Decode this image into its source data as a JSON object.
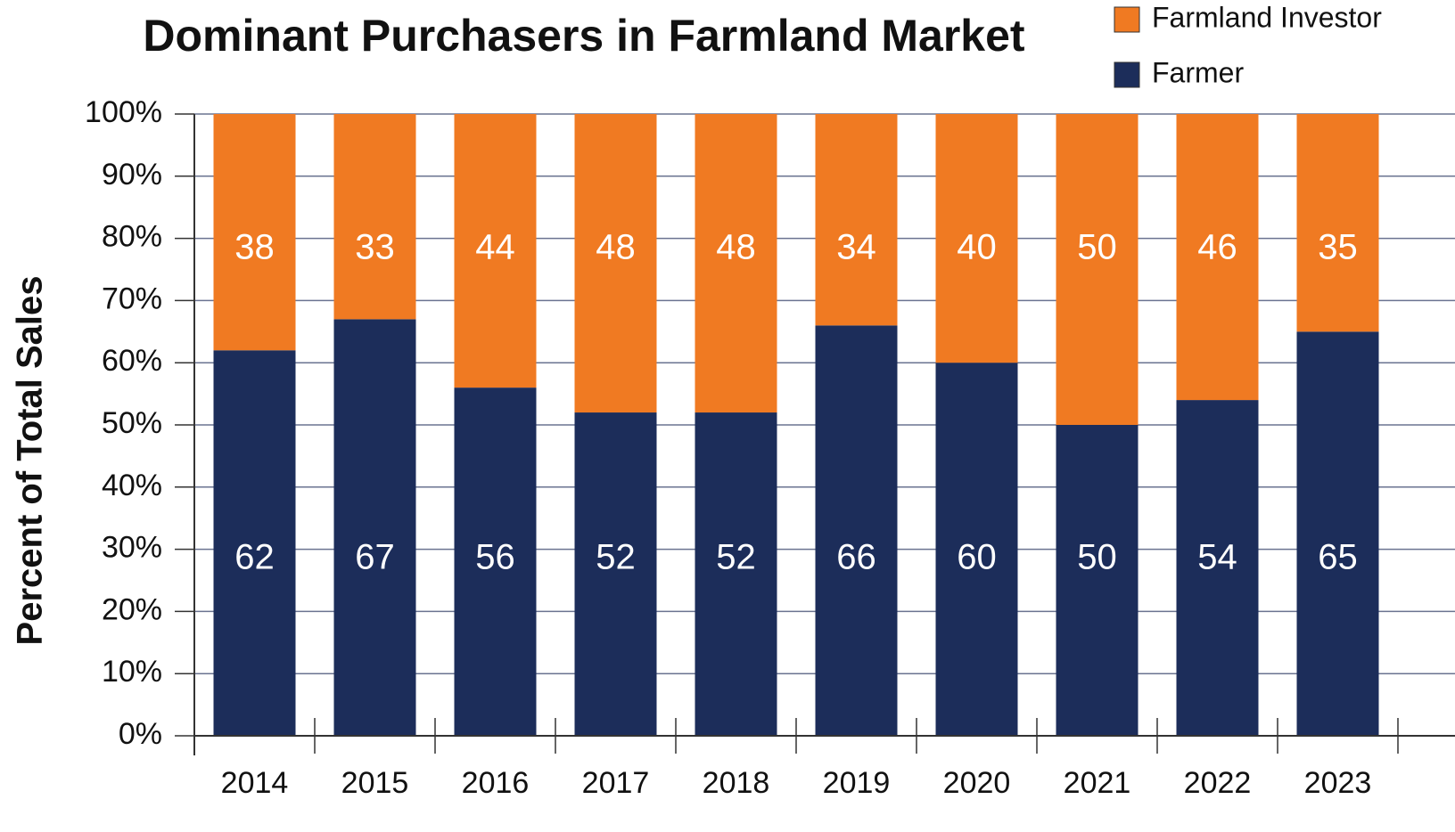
{
  "chart_data": {
    "type": "stacked_bar",
    "title": "Dominant Purchasers in Farmland Market",
    "y_label": "Percent of Total Sales",
    "categories": [
      "2014",
      "2015",
      "2016",
      "2017",
      "2018",
      "2019",
      "2020",
      "2021",
      "2022",
      "2023"
    ],
    "series": [
      {
        "name": "Farmer",
        "color": "#1c2d5a",
        "values": [
          62,
          67,
          56,
          52,
          52,
          66,
          60,
          50,
          54,
          65
        ]
      },
      {
        "name": "Farmland Investor",
        "color": "#f07a22",
        "values": [
          38,
          33,
          44,
          48,
          48,
          34,
          40,
          50,
          46,
          35
        ]
      }
    ],
    "ylim": [
      0,
      100
    ],
    "yticks": [
      {
        "value": 0,
        "label": "0%"
      },
      {
        "value": 10,
        "label": "10%"
      },
      {
        "value": 20,
        "label": "20%"
      },
      {
        "value": 30,
        "label": "30%"
      },
      {
        "value": 40,
        "label": "40%"
      },
      {
        "value": 50,
        "label": "50%"
      },
      {
        "value": 60,
        "label": "60%"
      },
      {
        "value": 70,
        "label": "70%"
      },
      {
        "value": 80,
        "label": "80%"
      },
      {
        "value": 90,
        "label": "90%"
      },
      {
        "value": 100,
        "label": "100%"
      }
    ],
    "grid": true
  }
}
